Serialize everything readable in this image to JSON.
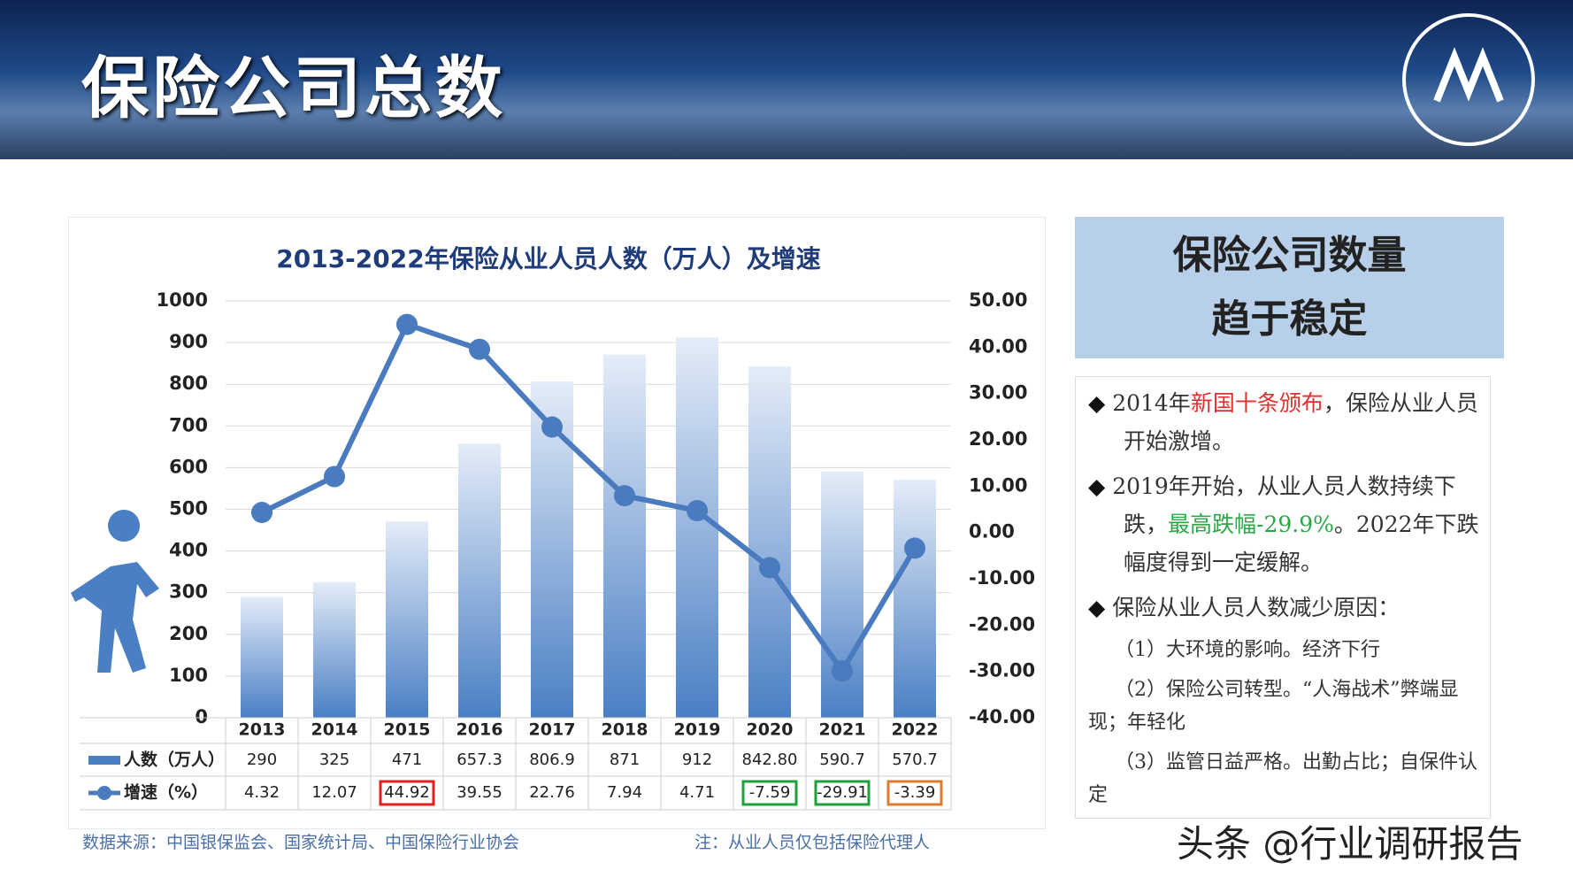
{
  "header": {
    "title": "保险公司总数"
  },
  "chart_data": {
    "type": "bar-line",
    "title": "2013-2022年保险从业人员人数（万人）及增速",
    "categories": [
      "2013",
      "2014",
      "2015",
      "2016",
      "2017",
      "2018",
      "2019",
      "2020",
      "2021",
      "2022"
    ],
    "series": [
      {
        "name": "人数（万人）",
        "type": "bar",
        "color": "#4a7fc4",
        "values": [
          290,
          325,
          471,
          657.3,
          806.9,
          871,
          912,
          842.8,
          590.7,
          570.7
        ],
        "value_labels": [
          "290",
          "325",
          "471",
          "657.3",
          "806.9",
          "871",
          "912",
          "842.80",
          "590.7",
          "570.7"
        ]
      },
      {
        "name": "增速（%）",
        "type": "line",
        "axis": "y2",
        "color": "#4a7bbf",
        "values": [
          4.32,
          12.07,
          44.92,
          39.55,
          22.76,
          7.94,
          4.71,
          -7.59,
          -29.91,
          -3.39
        ],
        "highlight": [
          null,
          null,
          "#e02020",
          null,
          null,
          null,
          null,
          "#1fa03a",
          "#1fa03a",
          "#e07a30"
        ]
      }
    ],
    "ylim": [
      0,
      1000
    ],
    "yticks": [
      0,
      100,
      200,
      300,
      400,
      500,
      600,
      700,
      800,
      900,
      1000
    ],
    "y2lim": [
      -40,
      50
    ],
    "y2ticks": [
      {
        "value": -40,
        "label": "-40.00"
      },
      {
        "value": -30,
        "label": "-30.00"
      },
      {
        "value": -20,
        "label": "-20.00"
      },
      {
        "value": -10,
        "label": "-10.00"
      },
      {
        "value": 0,
        "label": "0.00"
      },
      {
        "value": 10,
        "label": "10.00"
      },
      {
        "value": 20,
        "label": "20.00"
      },
      {
        "value": 30,
        "label": "30.00"
      },
      {
        "value": 40,
        "label": "40.00"
      },
      {
        "value": 50,
        "label": "50.00"
      }
    ],
    "grid": true,
    "source": "数据来源：中国银保监会、国家统计局、中国保险行业协会",
    "note": "注：从业人员仅包括保险代理人"
  },
  "summary": {
    "title_lines": [
      "保险公司数量",
      "趋于稳定"
    ],
    "points": [
      {
        "bullet": true,
        "segments": [
          {
            "text": "2014年"
          },
          {
            "text": "新国十条颁布",
            "color": "#e03030"
          },
          {
            "text": "，保险从业人员开始激增。"
          }
        ]
      },
      {
        "bullet": true,
        "segments": [
          {
            "text": "2019年开始，从业人员人数持续下跌，"
          },
          {
            "text": "最高跌幅-29.9%",
            "color": "#2aa84a"
          },
          {
            "text": "。2022年下跌幅度得到一定缓解。"
          }
        ]
      },
      {
        "bullet": true,
        "segments": [
          {
            "text": "保险从业人员人数减少原因："
          }
        ]
      },
      {
        "bullet": false,
        "segments": [
          {
            "text": "（1）大环境的影响。经济下行"
          }
        ]
      },
      {
        "bullet": false,
        "segments": [
          {
            "text": "（2）保险公司转型。“人海战术”弊端显现；年轻化"
          }
        ]
      },
      {
        "bullet": false,
        "segments": [
          {
            "text": "（3）监管日益严格。出勤占比；自保件认定"
          }
        ]
      }
    ]
  },
  "watermark": "头条 @行业调研报告"
}
